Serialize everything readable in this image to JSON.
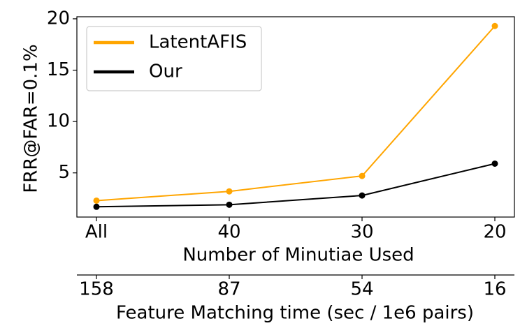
{
  "chart_data": {
    "type": "line",
    "y_label": "FRR@FAR=0.1%",
    "x_label": "Number of Minutiae Used",
    "categories": [
      "All",
      "40",
      "30",
      "20"
    ],
    "series": [
      {
        "name": "LatentAFIS",
        "color": "#ffa500",
        "values": [
          2.3,
          3.2,
          4.7,
          19.3
        ]
      },
      {
        "name": "Our",
        "color": "#000000",
        "values": [
          1.7,
          1.9,
          2.8,
          5.9
        ]
      }
    ],
    "ylim": [
      0.7,
      20.2
    ],
    "yticks": [
      5,
      10,
      15,
      20
    ],
    "grid": false,
    "legend": "upper left",
    "secondary_x_axis": {
      "label": "Feature Matching time (sec / 1e6 pairs)",
      "categories": [
        "158",
        "87",
        "54",
        "16"
      ]
    }
  }
}
